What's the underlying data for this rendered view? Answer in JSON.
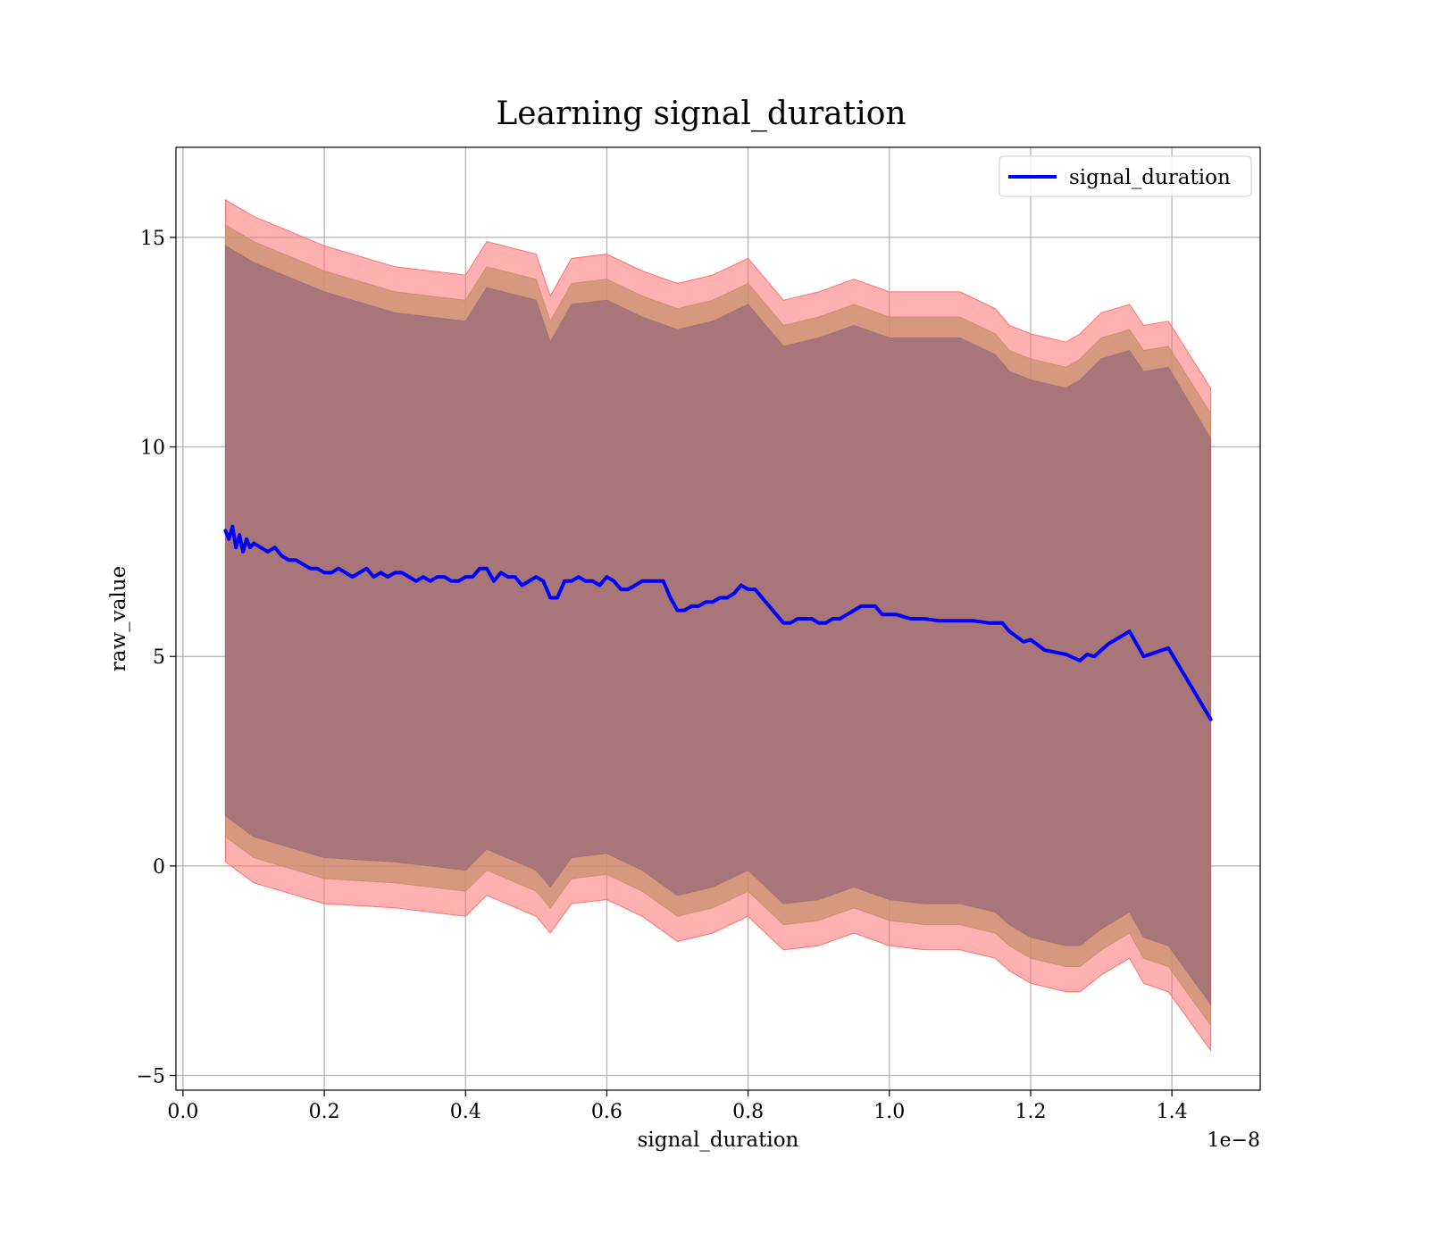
{
  "chart_data": {
    "type": "line",
    "title": "Learning signal_duration",
    "xlabel": "signal_duration",
    "ylabel": "raw_value",
    "x_offset_label": "1e−8",
    "xlim": [
      -0.01,
      1.525
    ],
    "ylim": [
      -5.35,
      17.15
    ],
    "x_ticks": [
      0.0,
      0.2,
      0.4,
      0.6,
      0.8,
      1.0,
      1.2,
      1.4
    ],
    "x_tick_labels": [
      "0.0",
      "0.2",
      "0.4",
      "0.6",
      "0.8",
      "1.0",
      "1.2",
      "1.4"
    ],
    "y_ticks": [
      -5,
      0,
      5,
      10,
      15
    ],
    "y_tick_labels": [
      "−5",
      "0",
      "5",
      "10",
      "15"
    ],
    "grid": true,
    "legend_position": "top-right",
    "colors": {
      "line": "#0000ff",
      "band_outer": "#ff7070",
      "band_middle": "#c8906e",
      "band_inner": "#a07078",
      "grid": "#b0b0b0"
    },
    "series": [
      {
        "name": "signal_duration",
        "x": [
          0.06,
          0.065,
          0.07,
          0.075,
          0.08,
          0.085,
          0.09,
          0.095,
          0.1,
          0.11,
          0.12,
          0.13,
          0.14,
          0.15,
          0.16,
          0.17,
          0.18,
          0.19,
          0.2,
          0.21,
          0.22,
          0.23,
          0.24,
          0.25,
          0.26,
          0.27,
          0.28,
          0.29,
          0.3,
          0.31,
          0.32,
          0.33,
          0.34,
          0.35,
          0.36,
          0.37,
          0.38,
          0.39,
          0.4,
          0.41,
          0.42,
          0.43,
          0.44,
          0.45,
          0.46,
          0.47,
          0.48,
          0.49,
          0.5,
          0.51,
          0.52,
          0.53,
          0.54,
          0.55,
          0.56,
          0.57,
          0.58,
          0.59,
          0.6,
          0.61,
          0.62,
          0.63,
          0.64,
          0.65,
          0.66,
          0.67,
          0.68,
          0.69,
          0.7,
          0.71,
          0.72,
          0.73,
          0.74,
          0.75,
          0.76,
          0.77,
          0.78,
          0.79,
          0.8,
          0.81,
          0.82,
          0.83,
          0.84,
          0.85,
          0.86,
          0.87,
          0.88,
          0.89,
          0.9,
          0.91,
          0.92,
          0.93,
          0.94,
          0.95,
          0.96,
          0.97,
          0.98,
          0.99,
          1.0,
          1.01,
          1.02,
          1.03,
          1.05,
          1.07,
          1.09,
          1.1,
          1.12,
          1.14,
          1.16,
          1.17,
          1.19,
          1.2,
          1.22,
          1.25,
          1.27,
          1.28,
          1.29,
          1.31,
          1.34,
          1.36,
          1.395,
          1.455
        ],
        "y": [
          8.0,
          7.8,
          8.1,
          7.6,
          7.9,
          7.5,
          7.8,
          7.6,
          7.7,
          7.6,
          7.5,
          7.6,
          7.4,
          7.3,
          7.3,
          7.2,
          7.1,
          7.1,
          7.0,
          7.0,
          7.1,
          7.0,
          6.9,
          7.0,
          7.1,
          6.9,
          7.0,
          6.9,
          7.0,
          7.0,
          6.9,
          6.8,
          6.9,
          6.8,
          6.9,
          6.9,
          6.8,
          6.8,
          6.9,
          6.9,
          7.1,
          7.1,
          6.8,
          7.0,
          6.9,
          6.9,
          6.7,
          6.8,
          6.9,
          6.8,
          6.4,
          6.4,
          6.8,
          6.8,
          6.9,
          6.8,
          6.8,
          6.7,
          6.9,
          6.8,
          6.6,
          6.6,
          6.7,
          6.8,
          6.8,
          6.8,
          6.8,
          6.4,
          6.1,
          6.1,
          6.2,
          6.2,
          6.3,
          6.3,
          6.4,
          6.4,
          6.5,
          6.7,
          6.6,
          6.6,
          6.4,
          6.2,
          6.0,
          5.8,
          5.8,
          5.9,
          5.9,
          5.9,
          5.8,
          5.8,
          5.9,
          5.9,
          6.0,
          6.1,
          6.2,
          6.2,
          6.2,
          6.0,
          6.0,
          6.0,
          5.95,
          5.9,
          5.9,
          5.85,
          5.85,
          5.85,
          5.85,
          5.8,
          5.8,
          5.6,
          5.35,
          5.4,
          5.15,
          5.05,
          4.9,
          5.05,
          5.0,
          5.3,
          5.6,
          5.0,
          5.2,
          3.5
        ]
      }
    ],
    "bands": [
      {
        "x": [
          0.06,
          0.1,
          0.2,
          0.3,
          0.4,
          0.43,
          0.5,
          0.52,
          0.55,
          0.6,
          0.65,
          0.7,
          0.75,
          0.8,
          0.85,
          0.9,
          0.95,
          1.0,
          1.05,
          1.1,
          1.15,
          1.17,
          1.2,
          1.25,
          1.27,
          1.3,
          1.34,
          1.36,
          1.395,
          1.455
        ],
        "lower": [
          0.1,
          -0.4,
          -0.9,
          -1.0,
          -1.2,
          -0.7,
          -1.2,
          -1.6,
          -0.9,
          -0.8,
          -1.2,
          -1.8,
          -1.6,
          -1.2,
          -2.0,
          -1.9,
          -1.6,
          -1.9,
          -2.0,
          -2.0,
          -2.2,
          -2.5,
          -2.8,
          -3.0,
          -3.0,
          -2.6,
          -2.2,
          -2.8,
          -3.0,
          -4.4
        ],
        "upper": [
          15.9,
          15.5,
          14.8,
          14.3,
          14.1,
          14.9,
          14.6,
          13.6,
          14.5,
          14.6,
          14.2,
          13.9,
          14.1,
          14.5,
          13.5,
          13.7,
          14.0,
          13.7,
          13.7,
          13.7,
          13.3,
          12.9,
          12.7,
          12.5,
          12.7,
          13.2,
          13.4,
          12.9,
          13.0,
          11.4
        ]
      },
      {
        "x": [
          0.06,
          0.1,
          0.2,
          0.3,
          0.4,
          0.43,
          0.5,
          0.52,
          0.55,
          0.6,
          0.65,
          0.7,
          0.75,
          0.8,
          0.85,
          0.9,
          0.95,
          1.0,
          1.05,
          1.1,
          1.15,
          1.17,
          1.2,
          1.25,
          1.27,
          1.3,
          1.34,
          1.36,
          1.395,
          1.455
        ],
        "lower": [
          0.7,
          0.2,
          -0.3,
          -0.4,
          -0.6,
          -0.1,
          -0.6,
          -1.0,
          -0.3,
          -0.2,
          -0.6,
          -1.2,
          -1.0,
          -0.6,
          -1.4,
          -1.3,
          -1.0,
          -1.3,
          -1.4,
          -1.4,
          -1.6,
          -1.9,
          -2.2,
          -2.4,
          -2.4,
          -2.0,
          -1.6,
          -2.2,
          -2.4,
          -3.8
        ],
        "upper": [
          15.3,
          14.9,
          14.2,
          13.7,
          13.5,
          14.3,
          14.0,
          13.0,
          13.9,
          14.0,
          13.6,
          13.3,
          13.5,
          13.9,
          12.9,
          13.1,
          13.4,
          13.1,
          13.1,
          13.1,
          12.7,
          12.3,
          12.1,
          11.9,
          12.1,
          12.6,
          12.8,
          12.3,
          12.4,
          10.8
        ]
      },
      {
        "x": [
          0.06,
          0.1,
          0.2,
          0.3,
          0.4,
          0.43,
          0.5,
          0.52,
          0.55,
          0.6,
          0.65,
          0.7,
          0.75,
          0.8,
          0.85,
          0.9,
          0.95,
          1.0,
          1.05,
          1.1,
          1.15,
          1.17,
          1.2,
          1.25,
          1.27,
          1.3,
          1.34,
          1.36,
          1.395,
          1.455
        ],
        "lower": [
          1.2,
          0.7,
          0.2,
          0.1,
          -0.1,
          0.4,
          -0.1,
          -0.5,
          0.2,
          0.3,
          -0.1,
          -0.7,
          -0.5,
          -0.1,
          -0.9,
          -0.8,
          -0.5,
          -0.8,
          -0.9,
          -0.9,
          -1.1,
          -1.4,
          -1.7,
          -1.9,
          -1.9,
          -1.5,
          -1.1,
          -1.7,
          -1.9,
          -3.3
        ],
        "upper": [
          14.8,
          14.4,
          13.7,
          13.2,
          13.0,
          13.8,
          13.5,
          12.5,
          13.4,
          13.5,
          13.1,
          12.8,
          13.0,
          13.4,
          12.4,
          12.6,
          12.9,
          12.6,
          12.6,
          12.6,
          12.2,
          11.8,
          11.6,
          11.4,
          11.6,
          12.1,
          12.3,
          11.8,
          11.9,
          10.2
        ]
      }
    ]
  }
}
